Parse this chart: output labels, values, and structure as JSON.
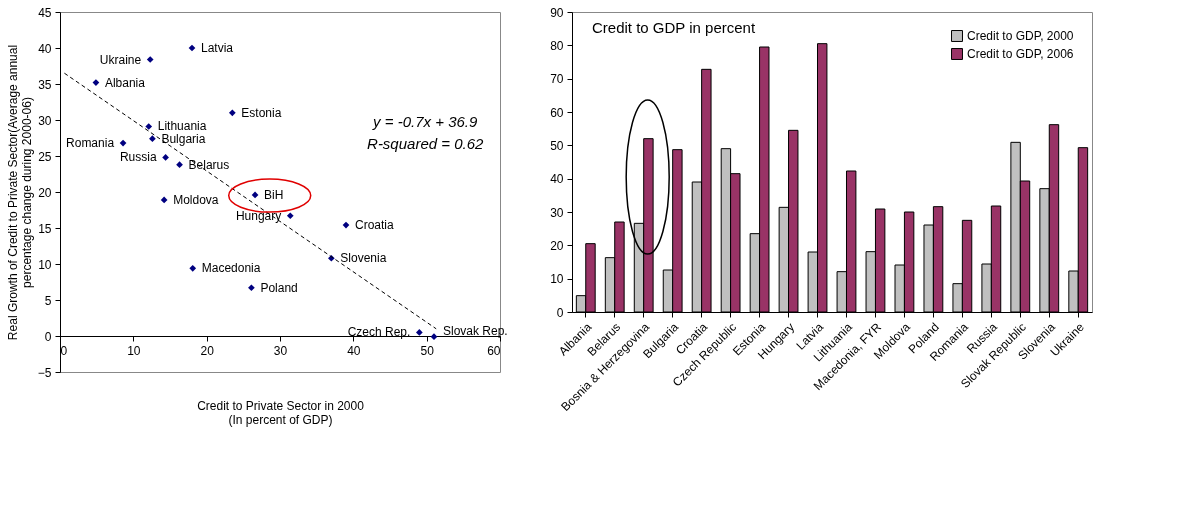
{
  "chart_data": [
    {
      "type": "scatter",
      "xlabel": "Credit to Private Sector in 2000\n(In percent of GDP)",
      "ylabel": "Real Growth of Credit to Private Sector(Average annual\npercentage change during 2000-06)",
      "xlim": [
        0,
        60
      ],
      "xticks": [
        0,
        10,
        20,
        30,
        40,
        50,
        60
      ],
      "ylim": [
        -5,
        45
      ],
      "yticks": [
        -5,
        0,
        5,
        10,
        15,
        20,
        25,
        30,
        35,
        40,
        45
      ],
      "grid": false,
      "legend": false,
      "series": [
        {
          "type": "scatter",
          "marker": "diamond",
          "color": "#000080",
          "x": [
            4.9,
            8.6,
            12.1,
            12.6,
            12.3,
            14.4,
            14.2,
            16.3,
            18.0,
            18.1,
            23.5,
            26.1,
            26.6,
            31.4,
            37.0,
            39.0,
            49.0,
            51.0
          ],
          "values": [
            35.2,
            26.8,
            29.1,
            27.4,
            38.4,
            24.8,
            18.9,
            23.8,
            40.0,
            9.4,
            31.0,
            6.7,
            19.6,
            16.7,
            10.8,
            15.4,
            0.5,
            -0.1
          ]
        },
        {
          "type": "line",
          "marker": "none",
          "color": "#000000",
          "line_style": "dashed",
          "x": [
            0.6,
            51.3
          ],
          "values": [
            36.5,
            1.0
          ]
        }
      ],
      "annotations": [
        {
          "text": "Albania",
          "x": 4.9,
          "y": 35.2
        },
        {
          "text": "Romania",
          "x": 8.6,
          "y": 26.8
        },
        {
          "text": "Lithuania",
          "x": 12.1,
          "y": 29.1
        },
        {
          "text": "Bulgaria",
          "x": 12.6,
          "y": 27.4
        },
        {
          "text": "Ukraine",
          "x": 12.3,
          "y": 38.4
        },
        {
          "text": "Russia",
          "x": 14.4,
          "y": 24.8
        },
        {
          "text": "Moldova",
          "x": 14.2,
          "y": 18.9
        },
        {
          "text": "Belarus",
          "x": 16.3,
          "y": 23.8
        },
        {
          "text": "Latvia",
          "x": 18.0,
          "y": 40.0
        },
        {
          "text": "Macedonia",
          "x": 18.1,
          "y": 9.4
        },
        {
          "text": "Estonia",
          "x": 23.5,
          "y": 31.0
        },
        {
          "text": "Poland",
          "x": 26.1,
          "y": 6.7
        },
        {
          "text": "BiH",
          "x": 26.6,
          "y": 19.6
        },
        {
          "text": "Hungary",
          "x": 31.4,
          "y": 16.7
        },
        {
          "text": "Slovenia",
          "x": 37.0,
          "y": 10.8
        },
        {
          "text": "Croatia",
          "x": 39.0,
          "y": 15.4
        },
        {
          "text": "Czech Rep.",
          "x": 49.0,
          "y": 0.5
        },
        {
          "text": "Slovak Rep.",
          "x": 51.0,
          "y": -0.1
        },
        "y = -0.7x + 36.9",
        "R-squared = 0.62"
      ]
    },
    {
      "type": "bar",
      "title": "Credit to GDP in percent",
      "legend": "top right",
      "grid": false,
      "categories": [
        "Albania",
        "Belarus",
        "Bosnia & Herzegovina",
        "Bulgaria",
        "Croatia",
        "Czech Republic",
        "Estonia",
        "Hungary",
        "Latvia",
        "Lithuania",
        "Macedonia, FYR",
        "Moldova",
        "Poland",
        "Romania",
        "Russia",
        "Slovak Republic",
        "Slovenia",
        "Ukraine"
      ],
      "ylim": [
        0,
        90
      ],
      "yticks": [
        0,
        10,
        20,
        30,
        40,
        50,
        60,
        70,
        80,
        90
      ],
      "series": [
        {
          "name": "Credit to GDP, 2000",
          "color": "#c0c0c0",
          "values": [
            4.9,
            16.3,
            26.6,
            12.6,
            39.0,
            49.0,
            23.5,
            31.4,
            18.0,
            12.1,
            18.1,
            14.1,
            26.1,
            8.5,
            14.4,
            50.9,
            37.0,
            12.3
          ]
        },
        {
          "name": "Credit to GDP, 2006",
          "color": "#993366",
          "values": [
            20.5,
            27.0,
            52.0,
            48.7,
            72.8,
            41.5,
            79.5,
            54.5,
            80.5,
            42.3,
            30.9,
            30.0,
            31.6,
            27.5,
            31.8,
            39.3,
            56.2,
            49.3
          ]
        }
      ]
    }
  ]
}
